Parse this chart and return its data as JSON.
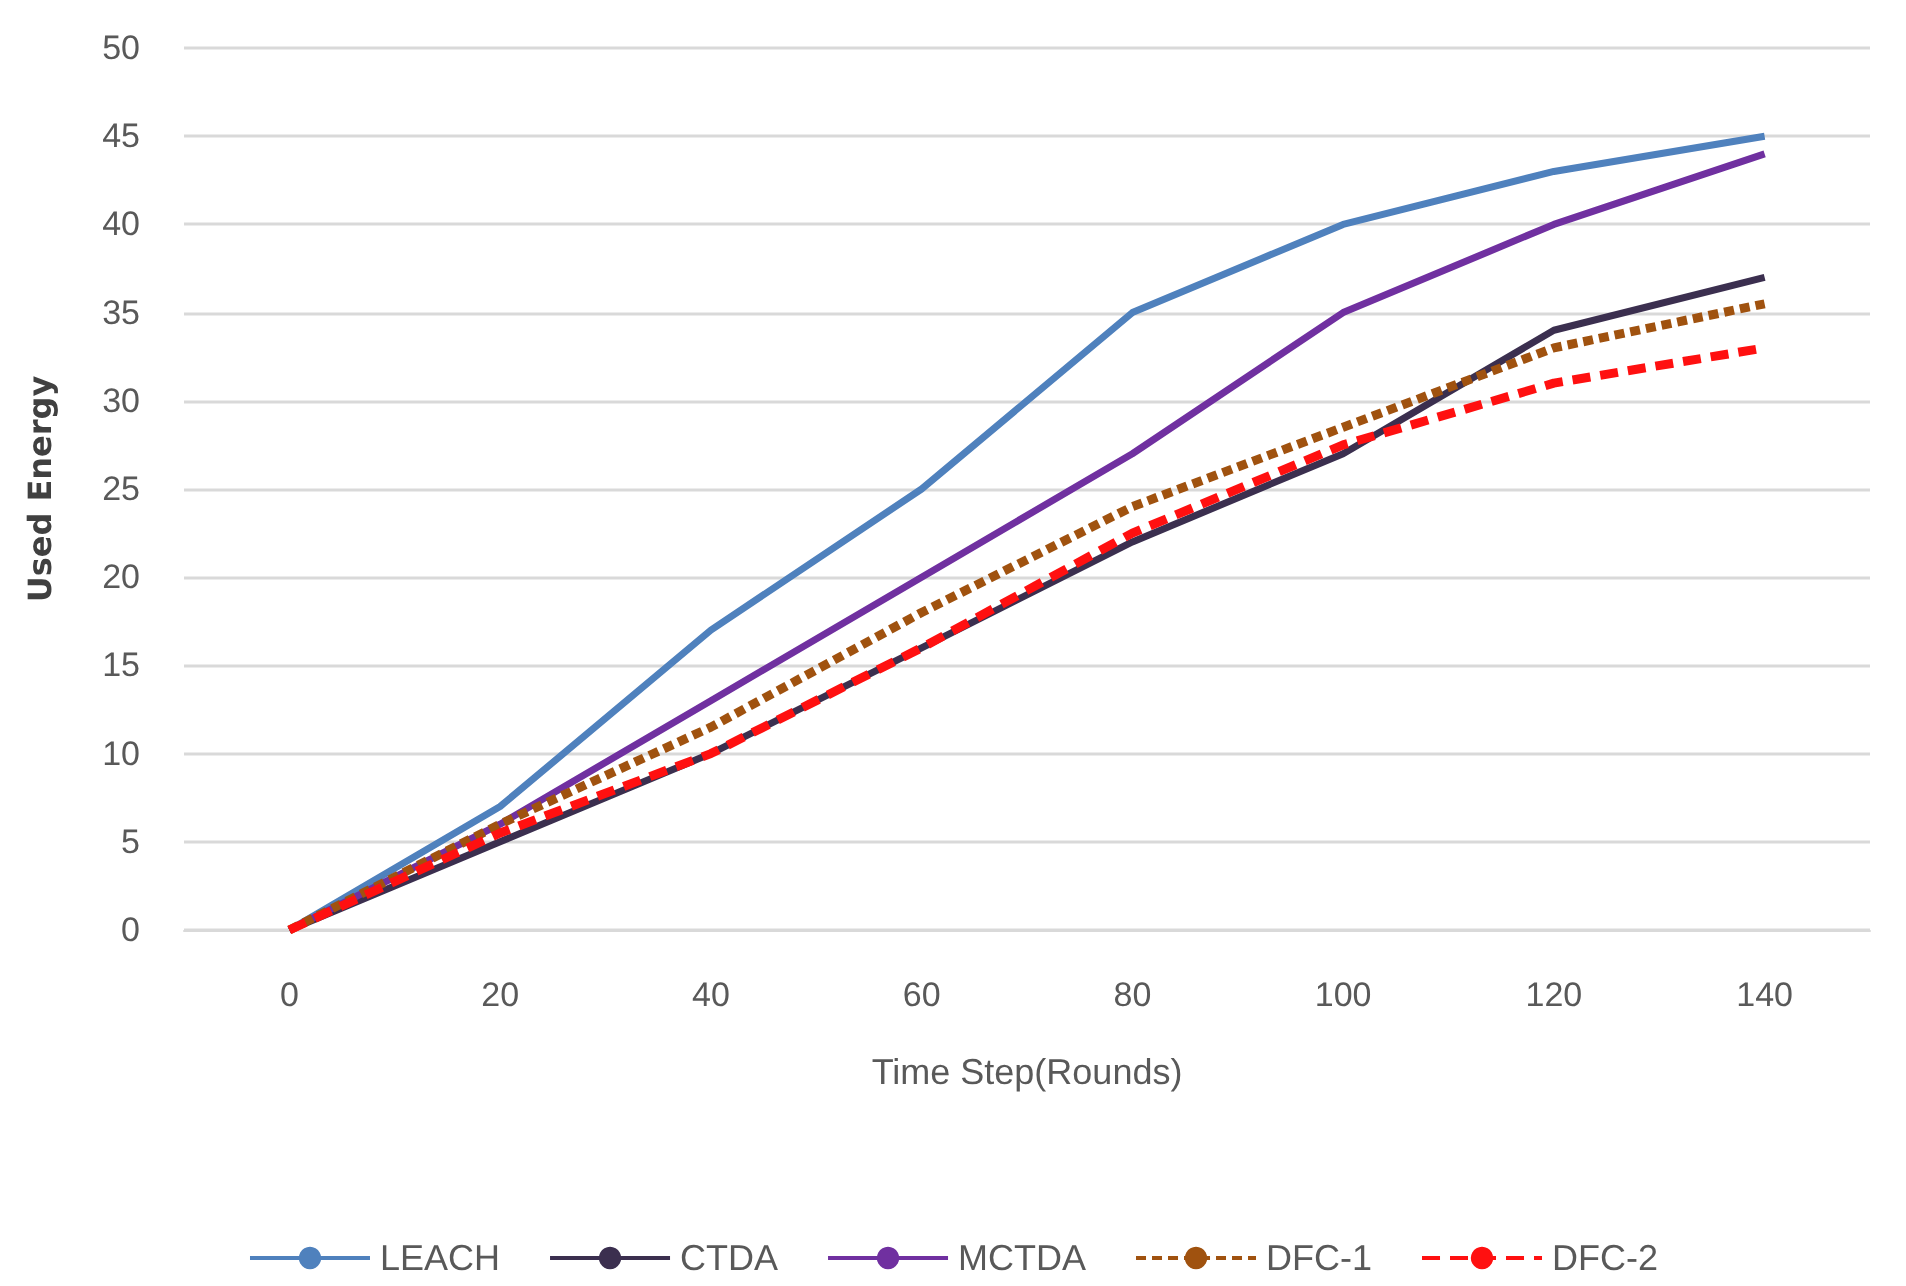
{
  "chart_data": {
    "type": "line",
    "xlabel": "Time Step(Rounds)",
    "ylabel": "Used Energy",
    "categories": [
      "0",
      "20",
      "40",
      "60",
      "80",
      "100",
      "120",
      "140"
    ],
    "series": [
      {
        "name": "LEACH",
        "color": "#4f81bd",
        "line_style": "solid",
        "values": [
          0,
          7,
          17,
          25,
          35,
          40,
          43,
          45
        ]
      },
      {
        "name": "CTDA",
        "color": "#3b2f4f",
        "line_style": "solid",
        "values": [
          0,
          5,
          10,
          16,
          22,
          27,
          34,
          37
        ]
      },
      {
        "name": "MCTDA",
        "color": "#7030a0",
        "line_style": "solid",
        "values": [
          0,
          6,
          13,
          20,
          27,
          35,
          40,
          44
        ]
      },
      {
        "name": "DFC-1",
        "color": "#a0520f",
        "line_style": "dotted",
        "values": [
          0,
          6,
          11.5,
          18,
          24,
          28.5,
          33,
          35.5
        ]
      },
      {
        "name": "DFC-2",
        "color": "#ff1010",
        "line_style": "dashed",
        "values": [
          0,
          5.5,
          10,
          16,
          22.5,
          27.5,
          31,
          33
        ]
      }
    ],
    "ylim": [
      0,
      50
    ],
    "yticks": [
      0,
      5,
      10,
      15,
      20,
      25,
      30,
      35,
      40,
      45,
      50
    ],
    "grid": "y",
    "legend": "bottom",
    "marker": "none"
  }
}
